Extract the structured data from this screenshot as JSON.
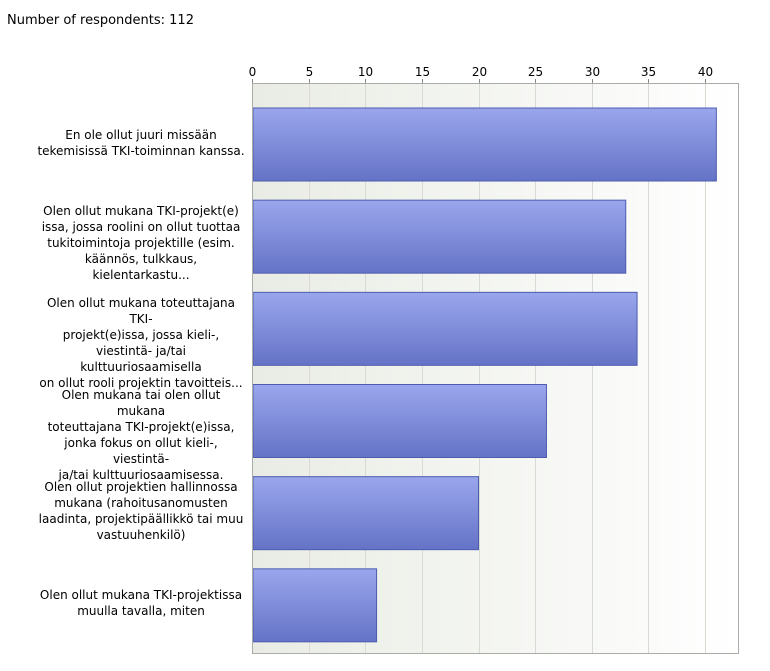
{
  "header": {
    "respondents_text": "Number of respondents: 112"
  },
  "colors": {
    "bar_top": "#9aa6ec",
    "bar_bottom": "#6573c7",
    "bar_edge": "#4e5cb0",
    "plot_bg_left": "#e9ece4",
    "plot_bg_right": "#ffffff",
    "grid": "#d7dbd3"
  },
  "chart_data": {
    "type": "bar",
    "orientation": "horizontal",
    "categories": [
      "En ole ollut juuri missään tekemisissä TKI-toiminnan kanssa.",
      "Olen ollut mukana TKI-projekt(e) issa, jossa roolini on ollut tuottaa tukitoimintoja projektille (esim. käännös, tulkkaus, kielentarkastu...",
      "Olen ollut mukana toteuttajana TKI-projekt(e)issa, jossa kieli-, viestintä- ja/tai kulttuuriosaamisella on ollut rooli projektin tavoitteis...",
      "Olen mukana tai olen ollut mukana toteuttajana TKI-projekt(e)issa, jonka fokus on ollut kieli-, viestintä- ja/tai kulttuuriosaamisessa.",
      "Olen ollut projektien hallinnossa mukana (rahoitusanomusten laadinta, projektipäällikkö tai muu vastuuhenkilö)",
      "Olen ollut mukana TKI-projektissa muulla tavalla, miten"
    ],
    "label_lines": [
      [
        "En ole ollut juuri missään",
        "tekemisissä TKI-toiminnan kanssa."
      ],
      [
        "Olen ollut mukana TKI-projekt(e)",
        "issa, jossa roolini on ollut tuottaa",
        "tukitoimintoja projektille (esim.",
        "käännös, tulkkaus, kielentarkastu..."
      ],
      [
        "Olen ollut mukana toteuttajana TKI-",
        "projekt(e)issa, jossa kieli-,",
        "viestintä- ja/tai kulttuuriosaamisella",
        "on ollut rooli projektin tavoitteis..."
      ],
      [
        "Olen mukana tai olen ollut mukana",
        "toteuttajana TKI-projekt(e)issa,",
        "jonka fokus on ollut kieli-, viestintä-",
        "ja/tai kulttuuriosaamisessa."
      ],
      [
        "Olen ollut projektien hallinnossa",
        "mukana (rahoitusanomusten",
        "laadinta, projektipäällikkö tai muu",
        "vastuuhenkilö)"
      ],
      [
        "Olen ollut mukana TKI-projektissa",
        "muulla tavalla, miten"
      ]
    ],
    "values": [
      41,
      33,
      34,
      26,
      20,
      11
    ],
    "xlim": [
      0,
      43
    ],
    "xticks": [
      0,
      5,
      10,
      15,
      20,
      25,
      30,
      35,
      40
    ],
    "xaxis_position": "top",
    "grid": true,
    "legend": "none",
    "title": "",
    "xlabel": "",
    "ylabel": ""
  }
}
